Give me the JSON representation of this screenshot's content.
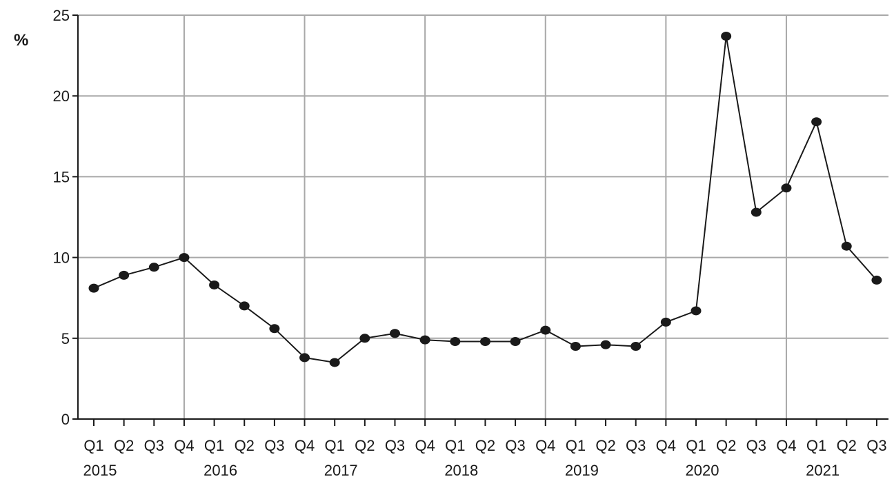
{
  "chart_data": {
    "type": "line",
    "ylabel": "%",
    "ylim": [
      0,
      25
    ],
    "y_ticks": [
      0,
      5,
      10,
      15,
      20,
      25
    ],
    "grid": true,
    "x_quarters": [
      "Q1",
      "Q2",
      "Q3",
      "Q4",
      "Q1",
      "Q2",
      "Q3",
      "Q4",
      "Q1",
      "Q2",
      "Q3",
      "Q4",
      "Q1",
      "Q2",
      "Q3",
      "Q4",
      "Q1",
      "Q2",
      "Q3",
      "Q4",
      "Q1",
      "Q2",
      "Q3",
      "Q4",
      "Q1",
      "Q2",
      "Q3"
    ],
    "x_years": [
      "2015",
      "2016",
      "2017",
      "2018",
      "2019",
      "2020",
      "2021"
    ],
    "series": [
      {
        "values": [
          8.1,
          8.9,
          9.4,
          10.0,
          8.3,
          7.0,
          5.6,
          3.8,
          3.5,
          5.0,
          5.3,
          4.9,
          4.8,
          4.8,
          4.8,
          5.5,
          4.5,
          4.6,
          4.5,
          6.0,
          6.7,
          23.7,
          12.8,
          14.3,
          18.4,
          10.7,
          8.6
        ]
      }
    ]
  }
}
